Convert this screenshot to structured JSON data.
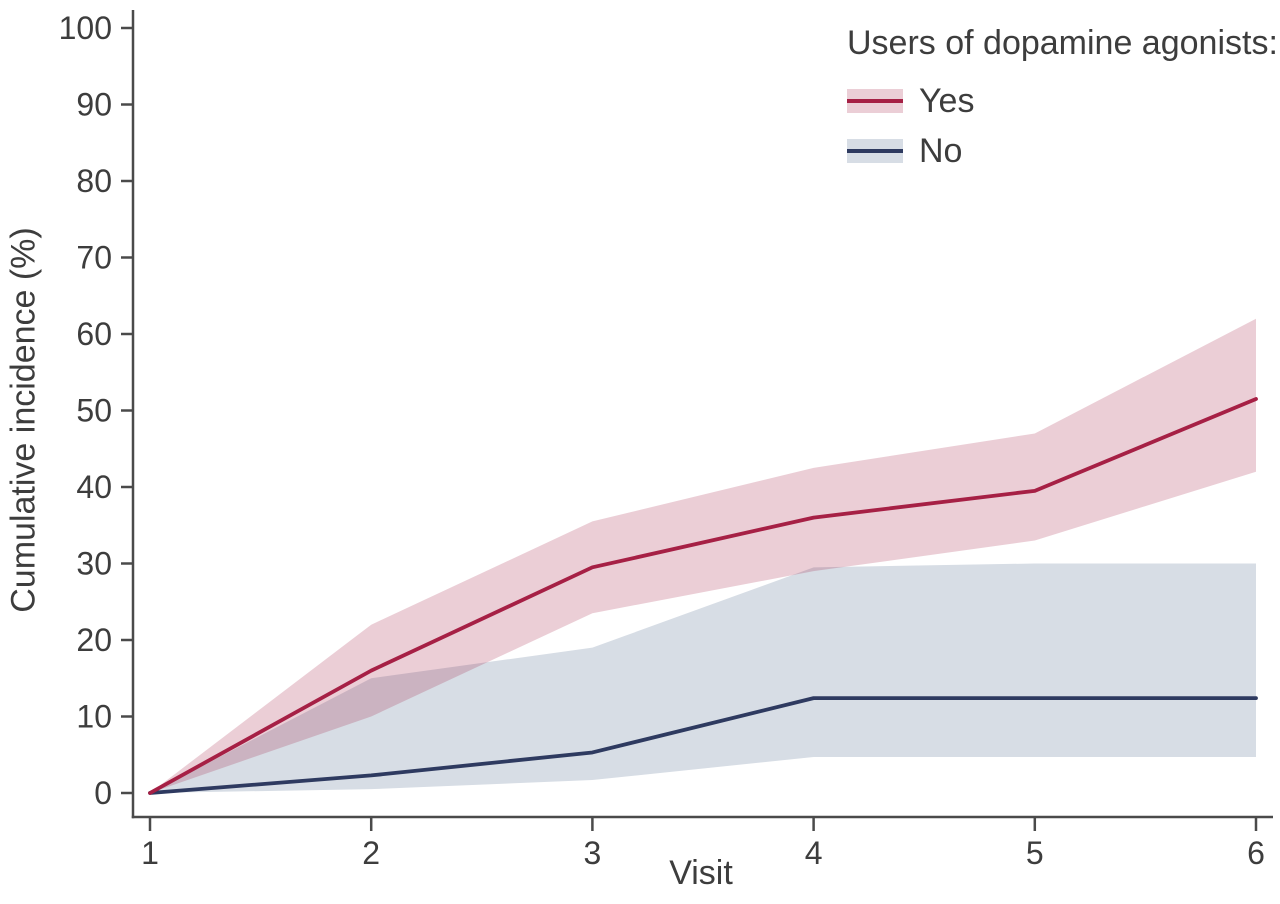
{
  "figure": {
    "background": "#ffffff",
    "axis_color": "#4a4a4a",
    "text_color": "#3d3d3d"
  },
  "chart_data": {
    "type": "line",
    "title": "",
    "xlabel": "Visit",
    "ylabel": "Cumulative incidence (%)",
    "x": [
      1,
      2,
      3,
      4,
      5,
      6
    ],
    "xlim": [
      1,
      6
    ],
    "ylim": [
      0,
      100
    ],
    "yticks": [
      0,
      10,
      20,
      30,
      40,
      50,
      60,
      70,
      80,
      90,
      100
    ],
    "grid": false,
    "legend": {
      "title": "Users of dopamine agonists:",
      "position": "top-right"
    },
    "series": [
      {
        "name": "Yes",
        "values": [
          0,
          16,
          29.5,
          36,
          39.5,
          51.5
        ],
        "ci_upper": [
          0,
          22,
          35.5,
          42.5,
          47,
          62
        ],
        "ci_lower": [
          0,
          10,
          23.5,
          29,
          33,
          42
        ],
        "line_color": "#a62045",
        "band_color": "rgba(166,32,69,0.22)"
      },
      {
        "name": "No",
        "values": [
          0,
          2.3,
          5.3,
          12.4,
          12.4,
          12.4
        ],
        "ci_upper": [
          0,
          15,
          19,
          29.5,
          30,
          30
        ],
        "ci_lower": [
          0,
          0.5,
          1.7,
          4.7,
          4.7,
          4.7
        ],
        "line_color": "#2e3a60",
        "band_color": "#d7dde5"
      }
    ]
  }
}
